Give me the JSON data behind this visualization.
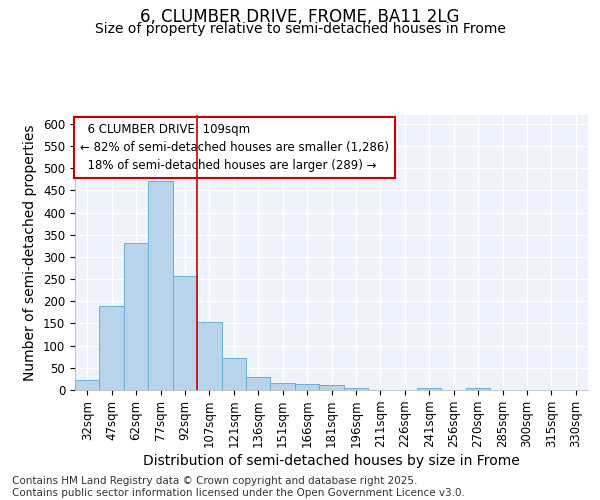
{
  "title": "6, CLUMBER DRIVE, FROME, BA11 2LG",
  "subtitle": "Size of property relative to semi-detached houses in Frome",
  "xlabel": "Distribution of semi-detached houses by size in Frome",
  "ylabel": "Number of semi-detached properties",
  "footnote": "Contains HM Land Registry data © Crown copyright and database right 2025.\nContains public sector information licensed under the Open Government Licence v3.0.",
  "bar_color": "#b8d4ea",
  "bar_edge_color": "#6aaed6",
  "background_color": "#eef2fb",
  "grid_color": "#ffffff",
  "categories": [
    "32sqm",
    "47sqm",
    "62sqm",
    "77sqm",
    "92sqm",
    "107sqm",
    "121sqm",
    "136sqm",
    "151sqm",
    "166sqm",
    "181sqm",
    "196sqm",
    "211sqm",
    "226sqm",
    "241sqm",
    "256sqm",
    "270sqm",
    "285sqm",
    "300sqm",
    "315sqm",
    "330sqm"
  ],
  "values": [
    22,
    190,
    332,
    472,
    257,
    153,
    72,
    30,
    15,
    14,
    12,
    4,
    1,
    1,
    4,
    1,
    4,
    1,
    1,
    1,
    1
  ],
  "ylim": [
    0,
    620
  ],
  "yticks": [
    0,
    50,
    100,
    150,
    200,
    250,
    300,
    350,
    400,
    450,
    500,
    550,
    600
  ],
  "property_label": "6 CLUMBER DRIVE: 109sqm",
  "pct_smaller": 82,
  "n_smaller": 1286,
  "pct_larger": 18,
  "n_larger": 289,
  "vline_bin_index": 5,
  "annotation_box_color": "#cc0000",
  "title_fontsize": 12,
  "subtitle_fontsize": 10,
  "axis_label_fontsize": 10,
  "tick_fontsize": 8.5,
  "annot_fontsize": 8.5,
  "footnote_fontsize": 7.5
}
